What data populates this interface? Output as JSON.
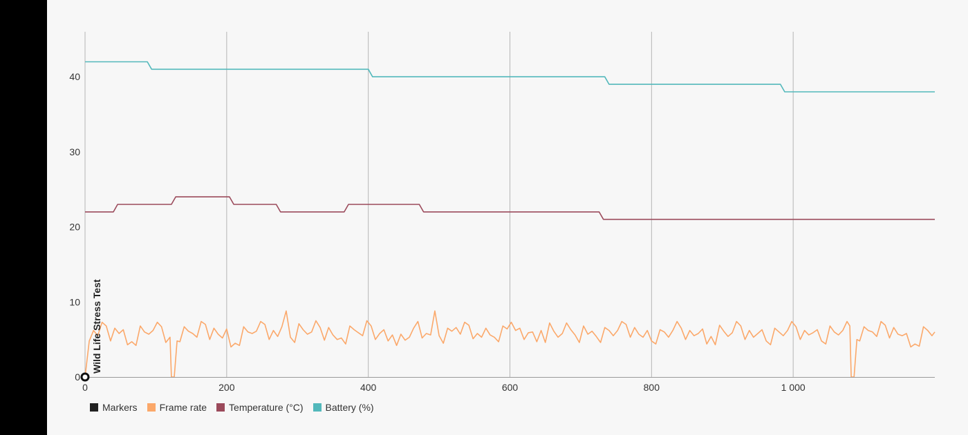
{
  "chart_data": {
    "type": "line",
    "xlim": [
      0,
      1200
    ],
    "ylim": [
      0,
      46
    ],
    "x_ticks": [
      {
        "value": 0,
        "label": "0"
      },
      {
        "value": 200,
        "label": "200"
      },
      {
        "value": 400,
        "label": "400"
      },
      {
        "value": 600,
        "label": "600"
      },
      {
        "value": 800,
        "label": "800"
      },
      {
        "value": 1000,
        "label": "1 000"
      }
    ],
    "y_ticks": [
      {
        "value": 0,
        "label": "0"
      },
      {
        "value": 10,
        "label": "10"
      },
      {
        "value": 20,
        "label": "20"
      },
      {
        "value": 30,
        "label": "30"
      },
      {
        "value": 40,
        "label": "40"
      }
    ],
    "grid": {
      "vertical": true,
      "horizontal": false
    },
    "legend_position": "bottom-left",
    "markers": [
      {
        "x": 0,
        "label": "Wild Life Stress Test"
      }
    ],
    "series": [
      {
        "name": "Frame rate",
        "color": "#fba86a",
        "points": [
          [
            0,
            0
          ],
          [
            6,
            4.8
          ],
          [
            12,
            6.2
          ],
          [
            18,
            5.5
          ],
          [
            24,
            7.3
          ],
          [
            30,
            6.8
          ],
          [
            36,
            4.8
          ],
          [
            42,
            6.5
          ],
          [
            48,
            5.8
          ],
          [
            54,
            6.3
          ],
          [
            60,
            4.3
          ],
          [
            66,
            4.7
          ],
          [
            72,
            4.2
          ],
          [
            78,
            6.8
          ],
          [
            84,
            6.0
          ],
          [
            90,
            5.7
          ],
          [
            96,
            6.2
          ],
          [
            102,
            7.3
          ],
          [
            108,
            6.7
          ],
          [
            114,
            4.6
          ],
          [
            120,
            5.3
          ],
          [
            122,
            0
          ],
          [
            126,
            0
          ],
          [
            130,
            4.8
          ],
          [
            134,
            4.7
          ],
          [
            140,
            6.7
          ],
          [
            146,
            6.1
          ],
          [
            152,
            5.8
          ],
          [
            158,
            5.3
          ],
          [
            164,
            7.4
          ],
          [
            170,
            7.0
          ],
          [
            176,
            5.0
          ],
          [
            182,
            6.5
          ],
          [
            188,
            5.7
          ],
          [
            194,
            5.2
          ],
          [
            200,
            6.4
          ],
          [
            206,
            4.0
          ],
          [
            212,
            4.5
          ],
          [
            218,
            4.2
          ],
          [
            224,
            6.7
          ],
          [
            230,
            6.0
          ],
          [
            236,
            5.8
          ],
          [
            242,
            6.1
          ],
          [
            248,
            7.4
          ],
          [
            254,
            7.0
          ],
          [
            260,
            5.0
          ],
          [
            266,
            6.2
          ],
          [
            272,
            5.4
          ],
          [
            278,
            6.7
          ],
          [
            284,
            8.8
          ],
          [
            290,
            5.3
          ],
          [
            296,
            4.6
          ],
          [
            302,
            7.1
          ],
          [
            308,
            6.3
          ],
          [
            314,
            5.7
          ],
          [
            320,
            6.0
          ],
          [
            326,
            7.5
          ],
          [
            332,
            6.6
          ],
          [
            338,
            4.9
          ],
          [
            344,
            6.6
          ],
          [
            350,
            5.6
          ],
          [
            356,
            5.0
          ],
          [
            362,
            5.2
          ],
          [
            368,
            4.4
          ],
          [
            374,
            6.8
          ],
          [
            380,
            6.3
          ],
          [
            386,
            5.9
          ],
          [
            392,
            5.5
          ],
          [
            398,
            7.5
          ],
          [
            404,
            6.8
          ],
          [
            410,
            5.0
          ],
          [
            416,
            5.8
          ],
          [
            422,
            6.3
          ],
          [
            428,
            4.8
          ],
          [
            434,
            5.6
          ],
          [
            440,
            4.2
          ],
          [
            446,
            5.7
          ],
          [
            452,
            4.9
          ],
          [
            458,
            5.3
          ],
          [
            464,
            6.5
          ],
          [
            470,
            7.4
          ],
          [
            476,
            5.2
          ],
          [
            482,
            5.8
          ],
          [
            488,
            5.6
          ],
          [
            494,
            8.8
          ],
          [
            500,
            5.5
          ],
          [
            506,
            4.5
          ],
          [
            512,
            6.5
          ],
          [
            518,
            6.1
          ],
          [
            524,
            6.6
          ],
          [
            530,
            5.7
          ],
          [
            536,
            7.3
          ],
          [
            542,
            6.9
          ],
          [
            548,
            5.1
          ],
          [
            554,
            5.8
          ],
          [
            560,
            5.3
          ],
          [
            566,
            6.5
          ],
          [
            572,
            5.6
          ],
          [
            578,
            5.3
          ],
          [
            584,
            4.7
          ],
          [
            590,
            6.8
          ],
          [
            596,
            6.4
          ],
          [
            602,
            7.3
          ],
          [
            608,
            6.2
          ],
          [
            614,
            6.5
          ],
          [
            620,
            5.0
          ],
          [
            626,
            5.9
          ],
          [
            632,
            6.0
          ],
          [
            638,
            4.7
          ],
          [
            644,
            6.2
          ],
          [
            650,
            4.6
          ],
          [
            656,
            7.2
          ],
          [
            662,
            6.1
          ],
          [
            668,
            5.3
          ],
          [
            674,
            5.8
          ],
          [
            680,
            7.2
          ],
          [
            686,
            6.3
          ],
          [
            692,
            5.6
          ],
          [
            698,
            4.6
          ],
          [
            704,
            6.8
          ],
          [
            710,
            5.7
          ],
          [
            716,
            6.1
          ],
          [
            722,
            5.4
          ],
          [
            728,
            4.6
          ],
          [
            734,
            6.6
          ],
          [
            740,
            6.2
          ],
          [
            746,
            5.5
          ],
          [
            752,
            6.2
          ],
          [
            758,
            7.4
          ],
          [
            764,
            7.0
          ],
          [
            770,
            5.3
          ],
          [
            776,
            6.6
          ],
          [
            782,
            5.7
          ],
          [
            788,
            5.3
          ],
          [
            794,
            6.2
          ],
          [
            800,
            4.8
          ],
          [
            806,
            4.4
          ],
          [
            812,
            6.3
          ],
          [
            818,
            6.0
          ],
          [
            824,
            5.3
          ],
          [
            830,
            6.2
          ],
          [
            836,
            7.4
          ],
          [
            842,
            6.5
          ],
          [
            848,
            5.0
          ],
          [
            854,
            6.2
          ],
          [
            860,
            5.5
          ],
          [
            866,
            5.8
          ],
          [
            872,
            6.4
          ],
          [
            878,
            4.4
          ],
          [
            884,
            5.4
          ],
          [
            890,
            4.3
          ],
          [
            896,
            6.9
          ],
          [
            902,
            6.1
          ],
          [
            908,
            5.4
          ],
          [
            914,
            5.9
          ],
          [
            920,
            7.4
          ],
          [
            926,
            6.8
          ],
          [
            932,
            5.0
          ],
          [
            938,
            6.2
          ],
          [
            944,
            5.3
          ],
          [
            950,
            5.8
          ],
          [
            956,
            6.3
          ],
          [
            962,
            4.8
          ],
          [
            968,
            4.3
          ],
          [
            974,
            6.5
          ],
          [
            980,
            6.0
          ],
          [
            986,
            5.5
          ],
          [
            992,
            6.2
          ],
          [
            998,
            7.4
          ],
          [
            1004,
            6.7
          ],
          [
            1010,
            5.0
          ],
          [
            1016,
            6.2
          ],
          [
            1022,
            5.6
          ],
          [
            1028,
            5.9
          ],
          [
            1034,
            6.3
          ],
          [
            1040,
            4.8
          ],
          [
            1046,
            4.4
          ],
          [
            1052,
            6.8
          ],
          [
            1058,
            6.0
          ],
          [
            1064,
            5.6
          ],
          [
            1070,
            6.2
          ],
          [
            1076,
            7.4
          ],
          [
            1080,
            6.8
          ],
          [
            1082,
            0
          ],
          [
            1086,
            0
          ],
          [
            1090,
            5.0
          ],
          [
            1094,
            4.8
          ],
          [
            1100,
            6.7
          ],
          [
            1106,
            6.2
          ],
          [
            1112,
            6.0
          ],
          [
            1118,
            5.4
          ],
          [
            1124,
            7.4
          ],
          [
            1130,
            6.9
          ],
          [
            1136,
            5.2
          ],
          [
            1142,
            6.6
          ],
          [
            1148,
            5.7
          ],
          [
            1154,
            5.5
          ],
          [
            1160,
            5.8
          ],
          [
            1166,
            4.0
          ],
          [
            1172,
            4.4
          ],
          [
            1178,
            4.1
          ],
          [
            1184,
            6.7
          ],
          [
            1190,
            6.2
          ],
          [
            1196,
            5.5
          ],
          [
            1200,
            6.0
          ]
        ]
      },
      {
        "name": "Temperature (°C)",
        "color": "#9b4a5b",
        "points": [
          [
            0,
            22
          ],
          [
            40,
            22
          ],
          [
            46,
            23
          ],
          [
            122,
            23
          ],
          [
            128,
            24
          ],
          [
            204,
            24
          ],
          [
            210,
            23
          ],
          [
            270,
            23
          ],
          [
            276,
            22
          ],
          [
            366,
            22
          ],
          [
            372,
            23
          ],
          [
            472,
            23
          ],
          [
            478,
            22
          ],
          [
            726,
            22
          ],
          [
            732,
            21
          ],
          [
            1200,
            21
          ]
        ]
      },
      {
        "name": "Battery (%)",
        "color": "#52b8bb",
        "points": [
          [
            0,
            42
          ],
          [
            88,
            42
          ],
          [
            94,
            41
          ],
          [
            400,
            41
          ],
          [
            406,
            40
          ],
          [
            734,
            40
          ],
          [
            740,
            39
          ],
          [
            982,
            39
          ],
          [
            988,
            38
          ],
          [
            1200,
            38
          ]
        ]
      }
    ],
    "legend": [
      {
        "name": "Markers",
        "color": "#222222"
      },
      {
        "name": "Frame rate",
        "color": "#fba86a"
      },
      {
        "name": "Temperature (°C)",
        "color": "#9b4a5b"
      },
      {
        "name": "Battery (%)",
        "color": "#52b8bb"
      }
    ]
  }
}
